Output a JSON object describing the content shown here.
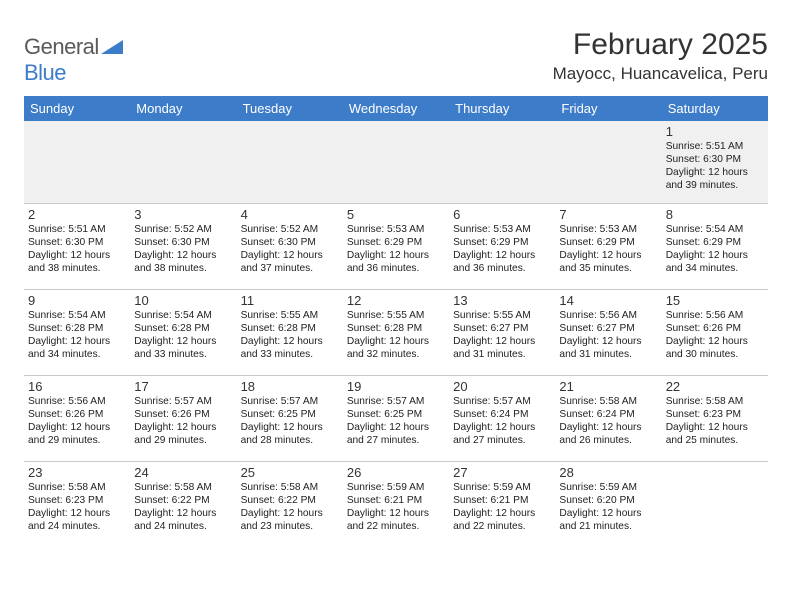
{
  "logo": {
    "text1": "General",
    "text2": "Blue"
  },
  "title": "February 2025",
  "location": "Mayocc, Huancavelica, Peru",
  "colors": {
    "header_bg": "#3d7cc9",
    "header_fg": "#ffffff",
    "first_row_bg": "#f0f0f0",
    "border": "#c9c9c9",
    "text": "#333333",
    "logo_gray": "#5a5a5a",
    "logo_blue": "#3d7cc9"
  },
  "day_headers": [
    "Sunday",
    "Monday",
    "Tuesday",
    "Wednesday",
    "Thursday",
    "Friday",
    "Saturday"
  ],
  "weeks": [
    [
      {
        "n": "",
        "sr": "",
        "ss": "",
        "dl": ""
      },
      {
        "n": "",
        "sr": "",
        "ss": "",
        "dl": ""
      },
      {
        "n": "",
        "sr": "",
        "ss": "",
        "dl": ""
      },
      {
        "n": "",
        "sr": "",
        "ss": "",
        "dl": ""
      },
      {
        "n": "",
        "sr": "",
        "ss": "",
        "dl": ""
      },
      {
        "n": "",
        "sr": "",
        "ss": "",
        "dl": ""
      },
      {
        "n": "1",
        "sr": "Sunrise: 5:51 AM",
        "ss": "Sunset: 6:30 PM",
        "dl": "Daylight: 12 hours and 39 minutes."
      }
    ],
    [
      {
        "n": "2",
        "sr": "Sunrise: 5:51 AM",
        "ss": "Sunset: 6:30 PM",
        "dl": "Daylight: 12 hours and 38 minutes."
      },
      {
        "n": "3",
        "sr": "Sunrise: 5:52 AM",
        "ss": "Sunset: 6:30 PM",
        "dl": "Daylight: 12 hours and 38 minutes."
      },
      {
        "n": "4",
        "sr": "Sunrise: 5:52 AM",
        "ss": "Sunset: 6:30 PM",
        "dl": "Daylight: 12 hours and 37 minutes."
      },
      {
        "n": "5",
        "sr": "Sunrise: 5:53 AM",
        "ss": "Sunset: 6:29 PM",
        "dl": "Daylight: 12 hours and 36 minutes."
      },
      {
        "n": "6",
        "sr": "Sunrise: 5:53 AM",
        "ss": "Sunset: 6:29 PM",
        "dl": "Daylight: 12 hours and 36 minutes."
      },
      {
        "n": "7",
        "sr": "Sunrise: 5:53 AM",
        "ss": "Sunset: 6:29 PM",
        "dl": "Daylight: 12 hours and 35 minutes."
      },
      {
        "n": "8",
        "sr": "Sunrise: 5:54 AM",
        "ss": "Sunset: 6:29 PM",
        "dl": "Daylight: 12 hours and 34 minutes."
      }
    ],
    [
      {
        "n": "9",
        "sr": "Sunrise: 5:54 AM",
        "ss": "Sunset: 6:28 PM",
        "dl": "Daylight: 12 hours and 34 minutes."
      },
      {
        "n": "10",
        "sr": "Sunrise: 5:54 AM",
        "ss": "Sunset: 6:28 PM",
        "dl": "Daylight: 12 hours and 33 minutes."
      },
      {
        "n": "11",
        "sr": "Sunrise: 5:55 AM",
        "ss": "Sunset: 6:28 PM",
        "dl": "Daylight: 12 hours and 33 minutes."
      },
      {
        "n": "12",
        "sr": "Sunrise: 5:55 AM",
        "ss": "Sunset: 6:28 PM",
        "dl": "Daylight: 12 hours and 32 minutes."
      },
      {
        "n": "13",
        "sr": "Sunrise: 5:55 AM",
        "ss": "Sunset: 6:27 PM",
        "dl": "Daylight: 12 hours and 31 minutes."
      },
      {
        "n": "14",
        "sr": "Sunrise: 5:56 AM",
        "ss": "Sunset: 6:27 PM",
        "dl": "Daylight: 12 hours and 31 minutes."
      },
      {
        "n": "15",
        "sr": "Sunrise: 5:56 AM",
        "ss": "Sunset: 6:26 PM",
        "dl": "Daylight: 12 hours and 30 minutes."
      }
    ],
    [
      {
        "n": "16",
        "sr": "Sunrise: 5:56 AM",
        "ss": "Sunset: 6:26 PM",
        "dl": "Daylight: 12 hours and 29 minutes."
      },
      {
        "n": "17",
        "sr": "Sunrise: 5:57 AM",
        "ss": "Sunset: 6:26 PM",
        "dl": "Daylight: 12 hours and 29 minutes."
      },
      {
        "n": "18",
        "sr": "Sunrise: 5:57 AM",
        "ss": "Sunset: 6:25 PM",
        "dl": "Daylight: 12 hours and 28 minutes."
      },
      {
        "n": "19",
        "sr": "Sunrise: 5:57 AM",
        "ss": "Sunset: 6:25 PM",
        "dl": "Daylight: 12 hours and 27 minutes."
      },
      {
        "n": "20",
        "sr": "Sunrise: 5:57 AM",
        "ss": "Sunset: 6:24 PM",
        "dl": "Daylight: 12 hours and 27 minutes."
      },
      {
        "n": "21",
        "sr": "Sunrise: 5:58 AM",
        "ss": "Sunset: 6:24 PM",
        "dl": "Daylight: 12 hours and 26 minutes."
      },
      {
        "n": "22",
        "sr": "Sunrise: 5:58 AM",
        "ss": "Sunset: 6:23 PM",
        "dl": "Daylight: 12 hours and 25 minutes."
      }
    ],
    [
      {
        "n": "23",
        "sr": "Sunrise: 5:58 AM",
        "ss": "Sunset: 6:23 PM",
        "dl": "Daylight: 12 hours and 24 minutes."
      },
      {
        "n": "24",
        "sr": "Sunrise: 5:58 AM",
        "ss": "Sunset: 6:22 PM",
        "dl": "Daylight: 12 hours and 24 minutes."
      },
      {
        "n": "25",
        "sr": "Sunrise: 5:58 AM",
        "ss": "Sunset: 6:22 PM",
        "dl": "Daylight: 12 hours and 23 minutes."
      },
      {
        "n": "26",
        "sr": "Sunrise: 5:59 AM",
        "ss": "Sunset: 6:21 PM",
        "dl": "Daylight: 12 hours and 22 minutes."
      },
      {
        "n": "27",
        "sr": "Sunrise: 5:59 AM",
        "ss": "Sunset: 6:21 PM",
        "dl": "Daylight: 12 hours and 22 minutes."
      },
      {
        "n": "28",
        "sr": "Sunrise: 5:59 AM",
        "ss": "Sunset: 6:20 PM",
        "dl": "Daylight: 12 hours and 21 minutes."
      },
      {
        "n": "",
        "sr": "",
        "ss": "",
        "dl": ""
      }
    ]
  ]
}
